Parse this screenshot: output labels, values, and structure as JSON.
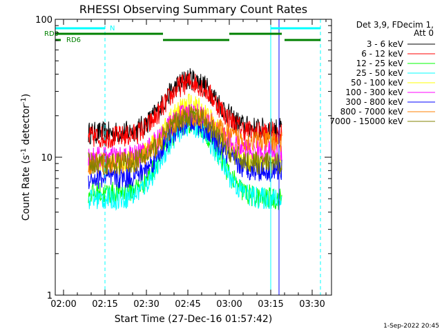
{
  "chart_data": {
    "type": "line",
    "title": "RHESSI Observing Summary Count Rates",
    "xlabel": "Start Time (27-Dec-16 01:57:42)",
    "ylabel_main": "Count Rate (s",
    "ylabel_sup1": "-1",
    "ylabel_mid": " detector",
    "ylabel_sup2": "-1",
    "ylabel_end": ")",
    "y_scale": "log",
    "ylim": [
      1,
      100
    ],
    "xlim": [
      "01:57",
      "03:37"
    ],
    "grid": false,
    "x_ticks": [
      "02:00",
      "02:15",
      "02:30",
      "02:45",
      "03:00",
      "03:15",
      "03:30"
    ],
    "y_ticks": [
      "1",
      "10",
      "100"
    ],
    "legend_title": [
      "Det 3,9, FDecim 1,",
      "Att 0"
    ],
    "legend_position": "right",
    "series": [
      {
        "name": "3 - 6 keV",
        "color": "#000000",
        "peak": 37,
        "base": 15,
        "tail": 16
      },
      {
        "name": "6 - 12 keV",
        "color": "#ff0000",
        "peak": 35,
        "base": 14,
        "tail": 15
      },
      {
        "name": "12 - 25 keV",
        "color": "#00ff00",
        "peak": 18,
        "base": 5.5,
        "tail": 5
      },
      {
        "name": "25 - 50 keV",
        "color": "#00ffff",
        "peak": 17,
        "base": 5,
        "tail": 5
      },
      {
        "name": "50 - 100 keV",
        "color": "#ffff00",
        "peak": 24,
        "base": 9,
        "tail": 9
      },
      {
        "name": "100 - 300 keV",
        "color": "#ff00ff",
        "peak": 21,
        "base": 10,
        "tail": 11
      },
      {
        "name": "300 - 800 keV",
        "color": "#0000ff",
        "peak": 18,
        "base": 7,
        "tail": 8
      },
      {
        "name": "800 - 7000 keV",
        "color": "#ff8000",
        "peak": 20,
        "base": 9,
        "tail": 13
      },
      {
        "name": "7000 - 15000 keV",
        "color": "#808000",
        "peak": 20,
        "base": 9,
        "tail": 9
      }
    ],
    "data_window": {
      "start": "02:09",
      "end": "03:19",
      "peak_time": "02:46"
    },
    "bars": {
      "N": {
        "label": "N",
        "color": "#00ffff",
        "segments": [
          [
            "01:57",
            "02:15"
          ],
          [
            "03:15",
            "03:33"
          ]
        ]
      },
      "RD0": {
        "label": "RD0",
        "color": "#008000",
        "segments": [
          [
            "01:57",
            "02:36"
          ],
          [
            "03:00",
            "03:19"
          ]
        ]
      },
      "RD6": {
        "label": "RD6",
        "color": "#008000",
        "segments": [
          [
            "01:57",
            "01:59"
          ],
          [
            "02:36",
            "03:00"
          ],
          [
            "03:20",
            "03:33"
          ]
        ]
      }
    },
    "vlines": [
      {
        "time": "01:57",
        "style": "solid",
        "color": "#00ffff"
      },
      {
        "time": "02:15",
        "style": "dashed",
        "color": "#00ffff"
      },
      {
        "time": "03:15",
        "style": "solid",
        "color": "#00ffff"
      },
      {
        "time": "03:33",
        "style": "dashed",
        "color": "#00ffff"
      },
      {
        "time": "03:18",
        "style": "solid",
        "color": "#0000ff"
      }
    ],
    "timestamp": "1-Sep-2022 20:45"
  }
}
